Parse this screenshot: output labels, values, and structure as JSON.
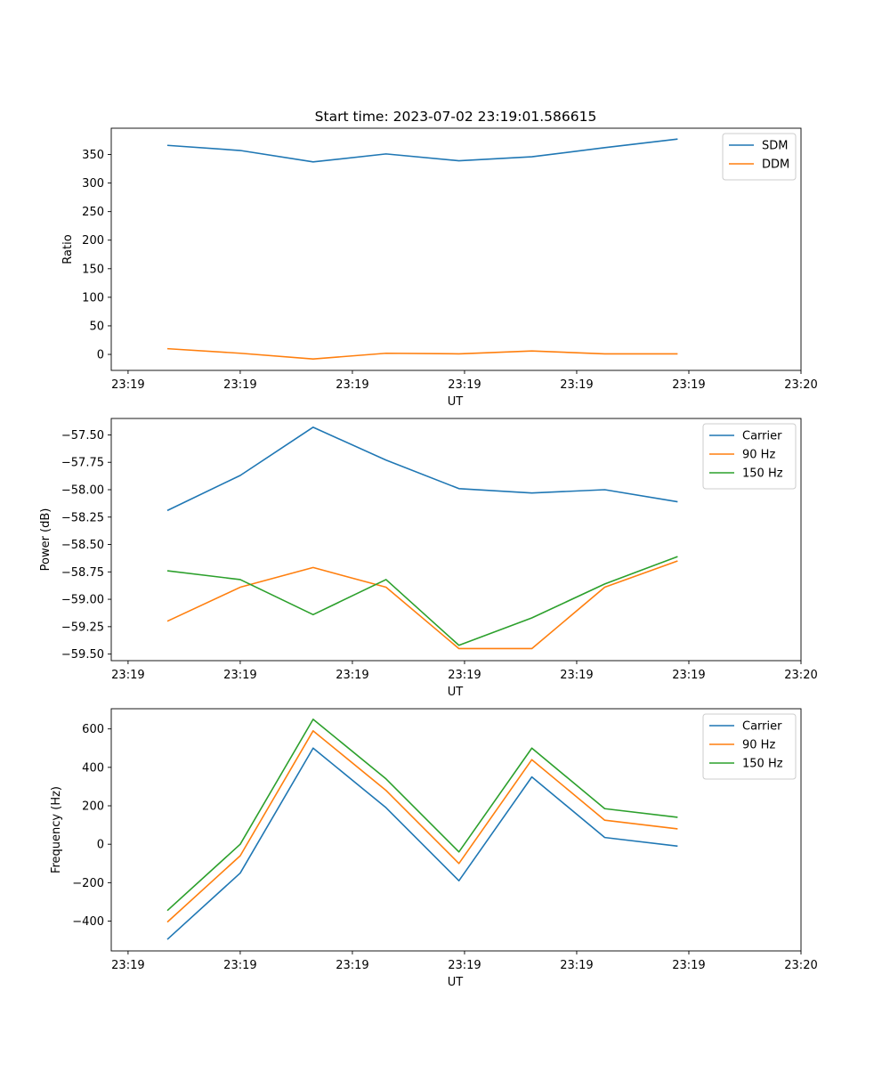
{
  "title": "Start time: 2023-07-02 23:19:01.586615",
  "colors": {
    "blue": "#1f77b4",
    "orange": "#ff7f0e",
    "green": "#2ca02c"
  },
  "chart_data": [
    {
      "type": "line",
      "xlabel": "UT",
      "ylabel": "Ratio",
      "x_tick_labels": [
        "23:19",
        "23:19",
        "23:19",
        "23:19",
        "23:19",
        "23:19",
        "23:20"
      ],
      "y_ticks": [
        0,
        50,
        100,
        150,
        200,
        250,
        300,
        350
      ],
      "y_tick_labels": [
        "0",
        "50",
        "100",
        "150",
        "200",
        "250",
        "300",
        "350"
      ],
      "ylim": [
        -28,
        396
      ],
      "xlim": [
        -0.15,
        6.0
      ],
      "legend_position": "upper right",
      "x": [
        0.35,
        1.0,
        1.65,
        2.3,
        2.95,
        3.6,
        4.25,
        4.9
      ],
      "series": [
        {
          "name": "SDM",
          "color": "#1f77b4",
          "values": [
            366,
            357,
            337,
            351,
            339,
            346,
            362,
            377
          ]
        },
        {
          "name": "DDM",
          "color": "#ff7f0e",
          "values": [
            10,
            2,
            -8,
            2,
            1,
            6,
            1,
            1
          ]
        }
      ]
    },
    {
      "type": "line",
      "xlabel": "UT",
      "ylabel": "Power (dB)",
      "x_tick_labels": [
        "23:19",
        "23:19",
        "23:19",
        "23:19",
        "23:19",
        "23:19",
        "23:20"
      ],
      "y_ticks": [
        -59.5,
        -59.25,
        -59.0,
        -58.75,
        -58.5,
        -58.25,
        -58.0,
        -57.75,
        -57.5
      ],
      "y_tick_labels": [
        "−59.50",
        "−59.25",
        "−59.00",
        "−58.75",
        "−58.50",
        "−58.25",
        "−58.00",
        "−57.75",
        "−57.50"
      ],
      "ylim": [
        -59.56,
        -57.35
      ],
      "xlim": [
        -0.15,
        6.0
      ],
      "legend_position": "upper right",
      "x": [
        0.35,
        1.0,
        1.65,
        2.3,
        2.95,
        3.6,
        4.25,
        4.9
      ],
      "series": [
        {
          "name": "Carrier",
          "color": "#1f77b4",
          "values": [
            -58.19,
            -57.87,
            -57.43,
            -57.73,
            -57.99,
            -58.03,
            -58.0,
            -58.11
          ]
        },
        {
          "name": "90 Hz",
          "color": "#ff7f0e",
          "values": [
            -59.2,
            -58.89,
            -58.71,
            -58.89,
            -59.45,
            -59.45,
            -58.89,
            -58.65
          ]
        },
        {
          "name": "150 Hz",
          "color": "#2ca02c",
          "values": [
            -58.74,
            -58.82,
            -59.14,
            -58.82,
            -59.42,
            -59.17,
            -58.86,
            -58.61
          ]
        }
      ]
    },
    {
      "type": "line",
      "xlabel": "UT",
      "ylabel": "Frequency (Hz)",
      "x_tick_labels": [
        "23:19",
        "23:19",
        "23:19",
        "23:19",
        "23:19",
        "23:19",
        "23:20"
      ],
      "y_ticks": [
        -400,
        -200,
        0,
        200,
        400,
        600
      ],
      "y_tick_labels": [
        "−400",
        "−200",
        "0",
        "200",
        "400",
        "600"
      ],
      "ylim": [
        -555,
        705
      ],
      "xlim": [
        -0.15,
        6.0
      ],
      "legend_position": "upper right",
      "x": [
        0.35,
        1.0,
        1.65,
        2.3,
        2.95,
        3.6,
        4.25,
        4.9
      ],
      "series": [
        {
          "name": "Carrier",
          "color": "#1f77b4",
          "values": [
            -495,
            -150,
            500,
            190,
            -190,
            350,
            35,
            -10
          ]
        },
        {
          "name": "90 Hz",
          "color": "#ff7f0e",
          "values": [
            -405,
            -60,
            590,
            280,
            -100,
            440,
            125,
            80
          ]
        },
        {
          "name": "150 Hz",
          "color": "#2ca02c",
          "values": [
            -345,
            0,
            650,
            340,
            -40,
            500,
            185,
            140
          ]
        }
      ]
    }
  ]
}
